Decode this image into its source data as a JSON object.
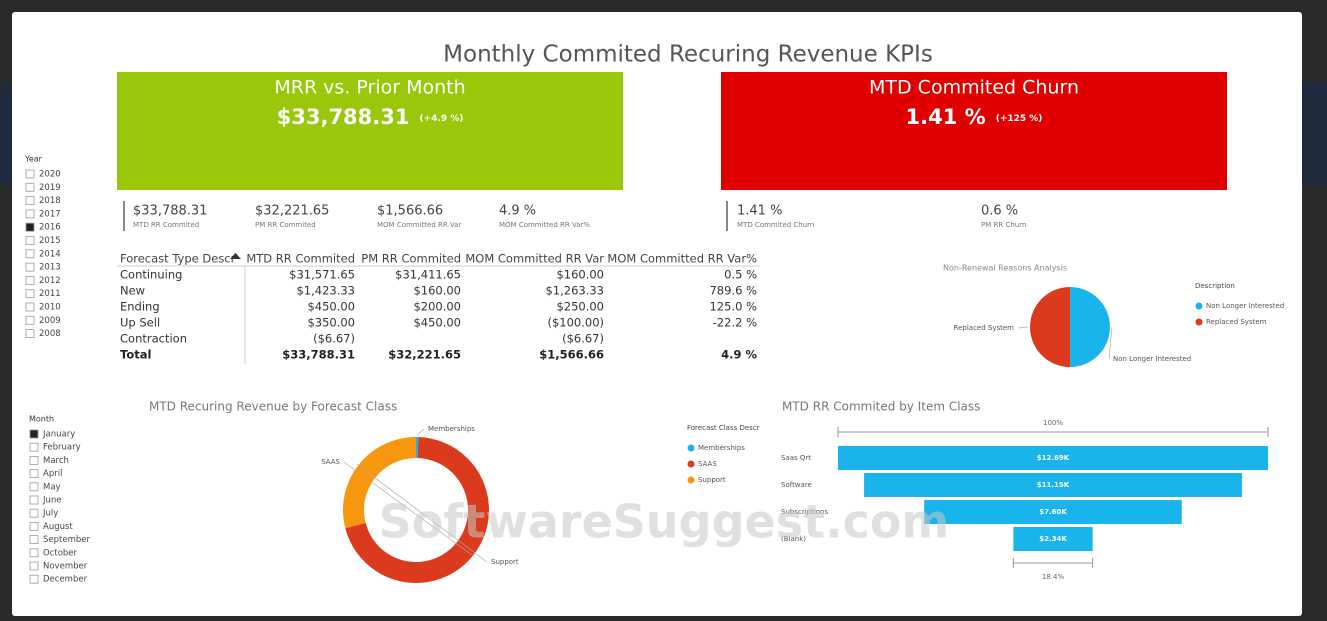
{
  "header": {
    "title": "Monthly Commited Recuring Revenue KPIs"
  },
  "cards": [
    {
      "title": "MRR vs. Prior Month",
      "value": "$33,788.31",
      "change": "(+4.9 %)",
      "color": "#99c70a"
    },
    {
      "title": "MTD Commited Churn",
      "value": "1.41 %",
      "change": "(+125 %)",
      "color": "#e00000"
    }
  ],
  "kpis": [
    {
      "value": "$33,788.31",
      "label": "MTD RR Commited"
    },
    {
      "value": "$32,221.65",
      "label": "PM RR Commited"
    },
    {
      "value": "$1,566.66",
      "label": "MOM Committed RR Var"
    },
    {
      "value": "4.9 %",
      "label": "MOM Committed RR Var%"
    },
    {
      "value": "1.41 %",
      "label": "MTD Commited Churn"
    },
    {
      "value": "0.6 %",
      "label": "PM RR Churn"
    }
  ],
  "slicers": [
    {
      "title": "Year",
      "items": [
        {
          "label": "2020",
          "checked": false
        },
        {
          "label": "2019",
          "checked": false
        },
        {
          "label": "2018",
          "checked": false
        },
        {
          "label": "2017",
          "checked": false
        },
        {
          "label": "2016",
          "checked": true
        },
        {
          "label": "2015",
          "checked": false
        },
        {
          "label": "2014",
          "checked": false
        },
        {
          "label": "2013",
          "checked": false
        },
        {
          "label": "2012",
          "checked": false
        },
        {
          "label": "2011",
          "checked": false
        },
        {
          "label": "2010",
          "checked": false
        },
        {
          "label": "2009",
          "checked": false
        },
        {
          "label": "2008",
          "checked": false
        }
      ]
    },
    {
      "title": "Month",
      "items": [
        {
          "label": "January",
          "checked": true
        },
        {
          "label": "February",
          "checked": false
        },
        {
          "label": "March",
          "checked": false
        },
        {
          "label": "April",
          "checked": false
        },
        {
          "label": "May",
          "checked": false
        },
        {
          "label": "June",
          "checked": false
        },
        {
          "label": "July",
          "checked": false
        },
        {
          "label": "August",
          "checked": false
        },
        {
          "label": "September",
          "checked": false
        },
        {
          "label": "October",
          "checked": false
        },
        {
          "label": "November",
          "checked": false
        },
        {
          "label": "December",
          "checked": false
        }
      ]
    }
  ],
  "table": {
    "columns": [
      "Forecast Type Descr",
      "MTD RR Commited",
      "PM RR Commited",
      "MOM Committed RR Var",
      "MOM Committed RR Var%"
    ],
    "rows": [
      [
        "Continuing",
        "$31,571.65",
        "$31,411.65",
        "$160.00",
        "0.5 %"
      ],
      [
        "New",
        "$1,423.33",
        "$160.00",
        "$1,263.33",
        "789.6 %"
      ],
      [
        "Ending",
        "$450.00",
        "$200.00",
        "$250.00",
        "125.0 %"
      ],
      [
        "Up Sell",
        "$350.00",
        "$450.00",
        "($100.00)",
        "-22.2 %"
      ],
      [
        "Contraction",
        "($6.67)",
        null,
        "($6.67)",
        null
      ]
    ],
    "total": [
      "Total",
      "$33,788.31",
      "$32,221.65",
      "$1,566.66",
      "4.9 %"
    ]
  },
  "watermark": "SoftwareSuggest.com",
  "chart_data": [
    {
      "type": "pie",
      "title": "Non-Renewal Reasons Analysis",
      "legend_title": "Description",
      "categories": [
        "Non Longer Interested",
        "Replaced System"
      ],
      "values": [
        50,
        50
      ],
      "colors": [
        "#1ab4ec",
        "#dc3a1c"
      ]
    },
    {
      "type": "donut",
      "title": "MTD Recuring Revenue by Forecast Class",
      "legend_title": "Forecast Class Descr",
      "categories": [
        "Memberships",
        "SAAS",
        "Support"
      ],
      "values": [
        0.5,
        70.5,
        29
      ],
      "colors": [
        "#1ab4ec",
        "#dc3a1c",
        "#f7960f"
      ]
    },
    {
      "type": "funnel",
      "title": "MTD RR Commited by Item Class",
      "categories": [
        "Saas Qrt",
        "Software",
        "Subscriptions",
        "(Blank)"
      ],
      "values": [
        12690,
        11150,
        7600,
        2340
      ],
      "value_labels": [
        "$12.69K",
        "$11.15K",
        "$7.60K",
        "$2.34K"
      ],
      "color": "#1ab4ec",
      "top_label": "100%",
      "bottom_label": "18.4%"
    }
  ]
}
